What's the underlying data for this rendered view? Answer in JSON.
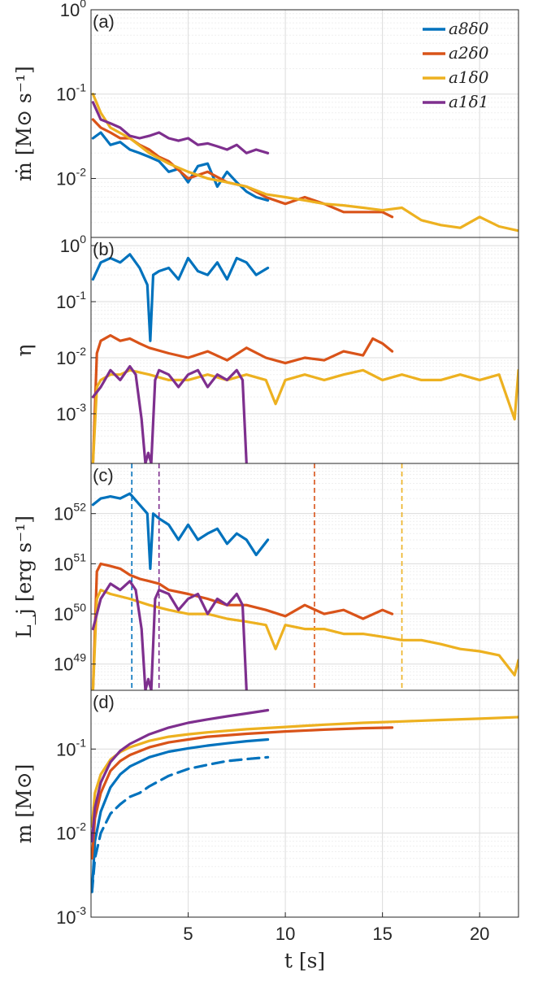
{
  "colors": {
    "a8d0": "#0072BD",
    "a2d0": "#D95319",
    "a1d0": "#EDB120",
    "a1d1": "#7E2F8E"
  },
  "chart_data": [
    {
      "id": "a",
      "type": "line",
      "panel_label": "(a)",
      "ylabel": "ṁ [M⊙ s⁻¹]",
      "yscale": "log",
      "ylim": [
        0.002,
        1
      ],
      "xlim": [
        0,
        22
      ],
      "grid": true,
      "yticks": [
        {
          "base": "10",
          "exp": "0",
          "value": 1
        },
        {
          "base": "10",
          "exp": "-1",
          "value": 0.1
        },
        {
          "base": "10",
          "exp": "-2",
          "value": 0.01
        }
      ],
      "legend": {
        "position": "top-right",
        "entries": [
          "a8δ0",
          "a2δ0",
          "a1δ0",
          "a1δ1"
        ]
      },
      "series": [
        {
          "name": "a8δ0",
          "color_key": "a8d0",
          "x": [
            0.1,
            0.5,
            1,
            1.5,
            2,
            2.5,
            3,
            3.5,
            4,
            4.5,
            5,
            5.5,
            6,
            6.5,
            7,
            7.5,
            8,
            8.5,
            9.1
          ],
          "y": [
            0.03,
            0.035,
            0.025,
            0.027,
            0.022,
            0.02,
            0.018,
            0.016,
            0.012,
            0.013,
            0.009,
            0.014,
            0.015,
            0.008,
            0.012,
            0.009,
            0.007,
            0.006,
            0.0055
          ]
        },
        {
          "name": "a2δ0",
          "color_key": "a2d0",
          "x": [
            0.1,
            0.5,
            1,
            1.5,
            2,
            2.5,
            3,
            3.5,
            4,
            5,
            6,
            7,
            8,
            9,
            10,
            11,
            12,
            13,
            14,
            15,
            15.5
          ],
          "y": [
            0.05,
            0.04,
            0.035,
            0.03,
            0.03,
            0.025,
            0.022,
            0.018,
            0.016,
            0.01,
            0.012,
            0.009,
            0.008,
            0.006,
            0.005,
            0.006,
            0.005,
            0.004,
            0.004,
            0.004,
            0.0035
          ]
        },
        {
          "name": "a1δ0",
          "color_key": "a1d0",
          "x": [
            0.1,
            0.5,
            1,
            2,
            3,
            4,
            5,
            6,
            7,
            8,
            9,
            10,
            11,
            12,
            13,
            14,
            15,
            16,
            17,
            18,
            19,
            20,
            21,
            22
          ],
          "y": [
            0.1,
            0.06,
            0.04,
            0.03,
            0.02,
            0.015,
            0.012,
            0.01,
            0.009,
            0.008,
            0.0065,
            0.006,
            0.0055,
            0.005,
            0.0048,
            0.0045,
            0.0042,
            0.0045,
            0.0032,
            0.0028,
            0.0026,
            0.0035,
            0.0027,
            0.0024
          ]
        },
        {
          "name": "a1δ1",
          "color_key": "a1d1",
          "x": [
            0.1,
            0.5,
            1,
            1.5,
            2,
            2.5,
            3,
            3.5,
            4,
            4.5,
            5,
            5.5,
            6,
            6.5,
            7,
            7.5,
            8,
            8.5,
            9.1
          ],
          "y": [
            0.08,
            0.05,
            0.045,
            0.04,
            0.032,
            0.03,
            0.032,
            0.035,
            0.03,
            0.028,
            0.03,
            0.025,
            0.026,
            0.024,
            0.022,
            0.025,
            0.02,
            0.022,
            0.02
          ]
        }
      ],
      "vlines": []
    },
    {
      "id": "b",
      "type": "line",
      "panel_label": "(b)",
      "ylabel": "η",
      "yscale": "log",
      "ylim": [
        0.00013,
        1.4
      ],
      "xlim": [
        0,
        22
      ],
      "grid": true,
      "yticks": [
        {
          "base": "10",
          "exp": "0",
          "value": 1
        },
        {
          "base": "10",
          "exp": "-1",
          "value": 0.1
        },
        {
          "base": "10",
          "exp": "-2",
          "value": 0.01
        },
        {
          "base": "10",
          "exp": "-3",
          "value": 0.001
        }
      ],
      "series": [
        {
          "name": "a8δ0",
          "color_key": "a8d0",
          "x": [
            0.1,
            0.5,
            1,
            1.5,
            2,
            2.5,
            2.9,
            3.05,
            3.2,
            3.5,
            4,
            4.5,
            5,
            5.5,
            6,
            6.5,
            7,
            7.5,
            8,
            8.5,
            9.1
          ],
          "y": [
            0.25,
            0.5,
            0.6,
            0.5,
            0.7,
            0.4,
            0.2,
            0.02,
            0.3,
            0.35,
            0.4,
            0.25,
            0.6,
            0.35,
            0.3,
            0.5,
            0.25,
            0.6,
            0.5,
            0.3,
            0.4
          ]
        },
        {
          "name": "a2δ0",
          "color_key": "a2d0",
          "x": [
            0.1,
            0.3,
            0.5,
            1,
            1.5,
            2,
            2.5,
            3,
            4,
            5,
            6,
            7,
            8,
            9,
            10,
            11,
            12,
            13,
            14,
            14.5,
            15,
            15.5
          ],
          "y": [
            0.00013,
            0.012,
            0.02,
            0.025,
            0.02,
            0.022,
            0.018,
            0.015,
            0.012,
            0.01,
            0.013,
            0.009,
            0.015,
            0.01,
            0.008,
            0.01,
            0.009,
            0.013,
            0.011,
            0.022,
            0.018,
            0.013
          ]
        },
        {
          "name": "a1δ0",
          "color_key": "a1d0",
          "x": [
            0.1,
            0.3,
            0.5,
            1,
            1.5,
            2,
            3,
            4,
            5,
            6,
            7,
            8,
            9,
            9.5,
            10,
            11,
            12,
            13,
            14,
            15,
            16,
            17,
            18,
            19,
            20,
            21,
            21.8,
            22
          ],
          "y": [
            0.00013,
            0.003,
            0.004,
            0.005,
            0.005,
            0.006,
            0.005,
            0.004,
            0.004,
            0.005,
            0.004,
            0.005,
            0.004,
            0.0015,
            0.004,
            0.005,
            0.004,
            0.005,
            0.006,
            0.004,
            0.005,
            0.004,
            0.004,
            0.005,
            0.004,
            0.005,
            0.0008,
            0.006
          ]
        },
        {
          "name": "a1δ1",
          "color_key": "a1d1",
          "x": [
            0.1,
            0.5,
            1,
            1.5,
            2,
            2.3,
            2.6,
            2.8,
            2.95,
            3.1,
            3.3,
            3.5,
            4,
            4.5,
            5,
            5.5,
            6,
            6.5,
            7,
            7.5,
            7.8,
            8
          ],
          "y": [
            0.002,
            0.003,
            0.006,
            0.004,
            0.007,
            0.005,
            0.0008,
            0.00013,
            0.0002,
            0.00013,
            0.004,
            0.006,
            0.005,
            0.003,
            0.005,
            0.006,
            0.003,
            0.005,
            0.004,
            0.006,
            0.004,
            0.00013
          ]
        }
      ],
      "vlines": []
    },
    {
      "id": "c",
      "type": "line",
      "panel_label": "(c)",
      "ylabel": "L_j [erg s⁻¹]",
      "yscale": "log",
      "ylim": [
        3e+48,
        1e+53
      ],
      "xlim": [
        0,
        22
      ],
      "grid": true,
      "yticks": [
        {
          "base": "10",
          "exp": "52",
          "value": 1e+52
        },
        {
          "base": "10",
          "exp": "51",
          "value": 1e+51
        },
        {
          "base": "10",
          "exp": "50",
          "value": 1e+50
        },
        {
          "base": "10",
          "exp": "49",
          "value": 1e+49
        }
      ],
      "series": [
        {
          "name": "a8δ0",
          "color_key": "a8d0",
          "x": [
            0.1,
            0.5,
            1,
            1.5,
            2,
            2.5,
            2.9,
            3.05,
            3.2,
            3.5,
            4,
            4.5,
            5,
            5.5,
            6,
            6.5,
            7,
            7.5,
            8,
            8.5,
            9.1
          ],
          "y": [
            1.5e+52,
            2e+52,
            2.2e+52,
            2e+52,
            2.5e+52,
            1.5e+52,
            1e+52,
            8e+50,
            1e+52,
            8e+51,
            6e+51,
            3e+51,
            6e+51,
            3e+51,
            4e+51,
            5e+51,
            2.5e+51,
            4e+51,
            3e+51,
            1.5e+51,
            3e+51
          ]
        },
        {
          "name": "a2δ0",
          "color_key": "a2d0",
          "x": [
            0.1,
            0.3,
            0.5,
            1,
            1.5,
            2,
            2.5,
            3,
            3.5,
            4,
            5,
            6,
            7,
            8,
            9,
            10,
            11,
            12,
            13,
            14,
            15,
            15.5
          ],
          "y": [
            3e+48,
            7e+50,
            1e+51,
            9e+50,
            8e+50,
            6e+50,
            5e+50,
            4.5e+50,
            4e+50,
            3e+50,
            2.5e+50,
            2e+50,
            1.5e+50,
            1.5e+50,
            1.2e+50,
            9e+49,
            1.5e+50,
            1e+50,
            1.2e+50,
            8e+49,
            1.2e+50,
            1e+50
          ]
        },
        {
          "name": "a1δ0",
          "color_key": "a1d0",
          "x": [
            0.1,
            0.3,
            0.5,
            1,
            2,
            3,
            4,
            5,
            6,
            7,
            8,
            9,
            9.5,
            10,
            11,
            12,
            13,
            14,
            15,
            16,
            17,
            18,
            19,
            20,
            21,
            21.8,
            22
          ],
          "y": [
            3e+48,
            2e+50,
            3e+50,
            2.5e+50,
            2e+50,
            1.5e+50,
            1.2e+50,
            1e+50,
            1e+50,
            8e+49,
            7e+49,
            6e+49,
            2e+49,
            6e+49,
            5e+49,
            5e+49,
            4e+49,
            4e+49,
            3.5e+49,
            3e+49,
            3e+49,
            2.5e+49,
            2e+49,
            1.8e+49,
            1.5e+49,
            6e+48,
            1.2e+49
          ]
        },
        {
          "name": "a1δ1",
          "color_key": "a1d1",
          "x": [
            0.1,
            0.5,
            1,
            1.5,
            2,
            2.3,
            2.6,
            2.8,
            2.95,
            3.1,
            3.3,
            3.5,
            4,
            4.5,
            5,
            5.5,
            6,
            6.5,
            7,
            7.5,
            7.8,
            8
          ],
          "y": [
            5e+49,
            2e+50,
            4e+50,
            3e+50,
            4.5e+50,
            3e+50,
            5e+49,
            3e+48,
            5e+48,
            3e+48,
            2e+50,
            3e+50,
            2.5e+50,
            1.2e+50,
            2e+50,
            2.5e+50,
            1e+50,
            2e+50,
            1.5e+50,
            2.5e+50,
            1.5e+50,
            3e+48
          ]
        }
      ],
      "vlines": [
        {
          "x": 2.1,
          "color_key": "a8d0"
        },
        {
          "x": 3.5,
          "color_key": "a1d1"
        },
        {
          "x": 11.5,
          "color_key": "a2d0"
        },
        {
          "x": 16.0,
          "color_key": "a1d0"
        }
      ]
    },
    {
      "id": "d",
      "type": "line",
      "panel_label": "(d)",
      "ylabel": "m [M⊙]",
      "xlabel": "t [s]",
      "yscale": "log",
      "ylim": [
        0.001,
        0.5
      ],
      "xlim": [
        0,
        22
      ],
      "grid": true,
      "xticks": [
        5,
        10,
        15,
        20
      ],
      "yticks": [
        {
          "base": "10",
          "exp": "-1",
          "value": 0.1
        },
        {
          "base": "10",
          "exp": "-2",
          "value": 0.01
        },
        {
          "base": "10",
          "exp": "-3",
          "value": 0.001
        }
      ],
      "series": [
        {
          "name": "a8δ0",
          "color_key": "a8d0",
          "x": [
            0.05,
            0.2,
            0.5,
            1,
            1.5,
            2,
            3,
            4,
            5,
            6,
            7,
            8,
            9.1
          ],
          "y": [
            0.002,
            0.008,
            0.018,
            0.035,
            0.05,
            0.062,
            0.08,
            0.093,
            0.102,
            0.11,
            0.117,
            0.124,
            0.13
          ]
        },
        {
          "name": "a8δ0 (dashed)",
          "color_key": "a8d0",
          "dashed": true,
          "x": [
            0.05,
            0.2,
            0.5,
            1,
            1.5,
            2,
            2.5,
            3,
            4,
            5,
            6,
            7,
            8,
            9.1
          ],
          "y": [
            0.002,
            0.005,
            0.01,
            0.017,
            0.022,
            0.027,
            0.03,
            0.036,
            0.048,
            0.058,
            0.065,
            0.072,
            0.076,
            0.08
          ]
        },
        {
          "name": "a2δ0",
          "color_key": "a2d0",
          "x": [
            0.05,
            0.2,
            0.5,
            1,
            1.5,
            2,
            3,
            4,
            5,
            6,
            8,
            10,
            12,
            14,
            15.5
          ],
          "y": [
            0.005,
            0.015,
            0.03,
            0.055,
            0.072,
            0.085,
            0.105,
            0.12,
            0.13,
            0.14,
            0.152,
            0.162,
            0.17,
            0.177,
            0.18
          ]
        },
        {
          "name": "a1δ0",
          "color_key": "a1d0",
          "x": [
            0.05,
            0.2,
            0.5,
            1,
            1.5,
            2,
            3,
            4,
            5,
            6,
            8,
            10,
            12,
            14,
            16,
            18,
            20,
            22
          ],
          "y": [
            0.012,
            0.03,
            0.05,
            0.075,
            0.092,
            0.105,
            0.125,
            0.14,
            0.15,
            0.158,
            0.172,
            0.183,
            0.195,
            0.205,
            0.213,
            0.222,
            0.23,
            0.24
          ]
        },
        {
          "name": "a1δ1",
          "color_key": "a1d1",
          "x": [
            0.05,
            0.2,
            0.5,
            1,
            1.5,
            2,
            3,
            4,
            5,
            6,
            7,
            8,
            9.1
          ],
          "y": [
            0.008,
            0.02,
            0.04,
            0.07,
            0.095,
            0.115,
            0.15,
            0.18,
            0.205,
            0.225,
            0.245,
            0.265,
            0.29
          ]
        }
      ],
      "vlines": []
    }
  ]
}
